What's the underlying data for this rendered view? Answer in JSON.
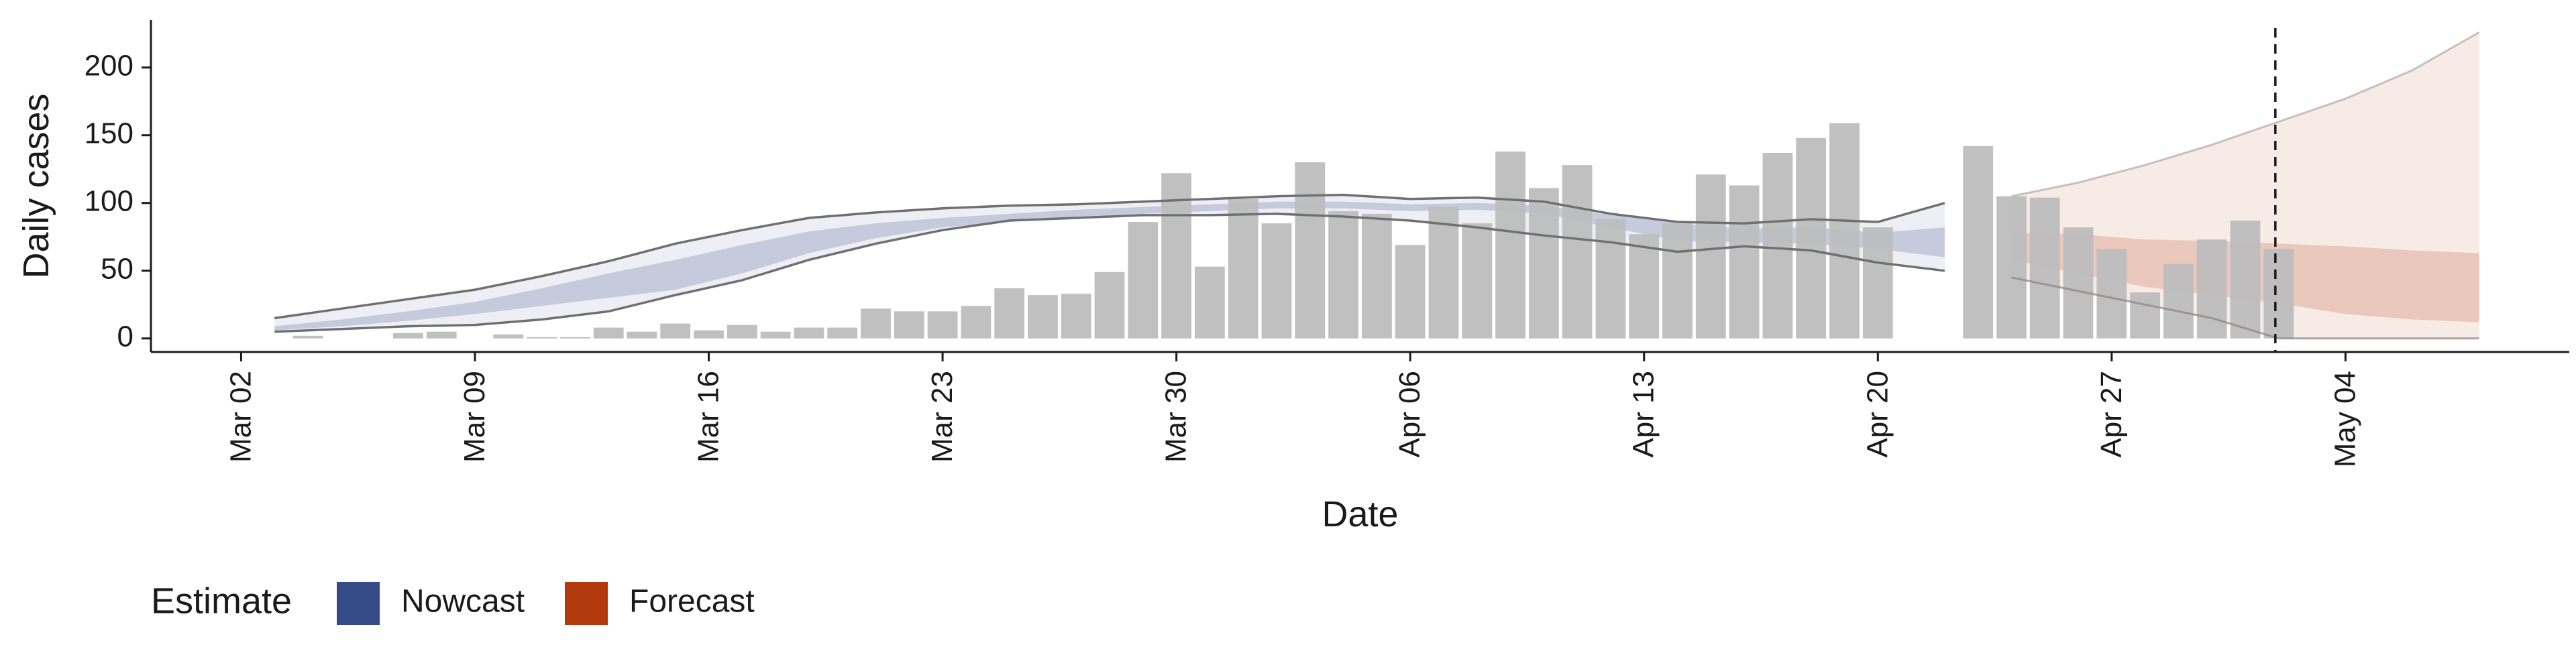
{
  "chart_data": {
    "type": "bar",
    "xlabel": "Date",
    "ylabel": "Daily cases",
    "ylim": [
      -10,
      235
    ],
    "yticks": [
      0,
      50,
      100,
      150,
      200
    ],
    "start_date": "2020-03-02",
    "x_ticks": [
      {
        "day": 0,
        "label": "Mar 02"
      },
      {
        "day": 7,
        "label": "Mar 09"
      },
      {
        "day": 14,
        "label": "Mar 16"
      },
      {
        "day": 21,
        "label": "Mar 23"
      },
      {
        "day": 28,
        "label": "Mar 30"
      },
      {
        "day": 35,
        "label": "Apr 06"
      },
      {
        "day": 42,
        "label": "Apr 13"
      },
      {
        "day": 49,
        "label": "Apr 20"
      },
      {
        "day": 56,
        "label": "Apr 27"
      },
      {
        "day": 63,
        "label": "May 04"
      }
    ],
    "xlim": [
      -2.7,
      69.7
    ],
    "vline_day": 60.9,
    "cases": [
      {
        "day": 2,
        "value": 2
      },
      {
        "day": 3,
        "value": 0
      },
      {
        "day": 4,
        "value": 0
      },
      {
        "day": 5,
        "value": 4
      },
      {
        "day": 6,
        "value": 5
      },
      {
        "day": 7,
        "value": 0
      },
      {
        "day": 8,
        "value": 3
      },
      {
        "day": 9,
        "value": 1
      },
      {
        "day": 10,
        "value": 1
      },
      {
        "day": 11,
        "value": 8
      },
      {
        "day": 12,
        "value": 5
      },
      {
        "day": 13,
        "value": 11
      },
      {
        "day": 14,
        "value": 6
      },
      {
        "day": 15,
        "value": 10
      },
      {
        "day": 16,
        "value": 5
      },
      {
        "day": 17,
        "value": 8
      },
      {
        "day": 18,
        "value": 8
      },
      {
        "day": 19,
        "value": 22
      },
      {
        "day": 20,
        "value": 20
      },
      {
        "day": 21,
        "value": 20
      },
      {
        "day": 22,
        "value": 24
      },
      {
        "day": 23,
        "value": 37
      },
      {
        "day": 24,
        "value": 32
      },
      {
        "day": 25,
        "value": 33
      },
      {
        "day": 26,
        "value": 49
      },
      {
        "day": 27,
        "value": 86
      },
      {
        "day": 28,
        "value": 122
      },
      {
        "day": 29,
        "value": 53
      },
      {
        "day": 30,
        "value": 103
      },
      {
        "day": 31,
        "value": 85
      },
      {
        "day": 32,
        "value": 130
      },
      {
        "day": 33,
        "value": 94
      },
      {
        "day": 34,
        "value": 92
      },
      {
        "day": 35,
        "value": 69
      },
      {
        "day": 36,
        "value": 97
      },
      {
        "day": 37,
        "value": 85
      },
      {
        "day": 38,
        "value": 138
      },
      {
        "day": 39,
        "value": 111
      },
      {
        "day": 40,
        "value": 128
      },
      {
        "day": 41,
        "value": 88
      },
      {
        "day": 42,
        "value": 77
      },
      {
        "day": 43,
        "value": 85
      },
      {
        "day": 44,
        "value": 121
      },
      {
        "day": 45,
        "value": 113
      },
      {
        "day": 46,
        "value": 137
      },
      {
        "day": 47,
        "value": 148
      },
      {
        "day": 48,
        "value": 159
      },
      {
        "day": 49,
        "value": 82
      },
      {
        "day": 50,
        "value": 0
      },
      {
        "day": 51,
        "value": 0
      },
      {
        "day": 52,
        "value": 142
      },
      {
        "day": 53,
        "value": 105
      },
      {
        "day": 54,
        "value": 104
      },
      {
        "day": 55,
        "value": 82
      },
      {
        "day": 56,
        "value": 66
      },
      {
        "day": 57,
        "value": 34
      },
      {
        "day": 58,
        "value": 55
      },
      {
        "day": 59,
        "value": 73
      },
      {
        "day": 60,
        "value": 87
      },
      {
        "day": 61,
        "value": 66
      }
    ],
    "nowcast": {
      "x": [
        1,
        3,
        5,
        7,
        9,
        11,
        13,
        15,
        17,
        19,
        21,
        23,
        25,
        27,
        29,
        31,
        33,
        35,
        37,
        39,
        41,
        43,
        45,
        47,
        49,
        51
      ],
      "upper90": [
        15,
        22,
        29,
        36,
        46,
        57,
        70,
        80,
        89,
        93,
        96,
        98,
        99,
        101,
        103,
        105,
        106,
        103,
        104,
        101,
        92,
        86,
        85,
        88,
        86,
        100
      ],
      "upper50": [
        9,
        14,
        20,
        27,
        37,
        48,
        58,
        69,
        79,
        85,
        89,
        92,
        95,
        97,
        99,
        101,
        101,
        99,
        100,
        98,
        91,
        85,
        81,
        82,
        78,
        82
      ],
      "lower50": [
        6,
        9,
        13,
        18,
        24,
        30,
        36,
        48,
        63,
        74,
        82,
        86,
        90,
        92,
        94,
        96,
        96,
        94,
        95,
        92,
        82,
        72,
        71,
        70,
        66,
        60
      ],
      "lower90": [
        5,
        7,
        9,
        10,
        14,
        20,
        32,
        43,
        58,
        70,
        80,
        87,
        89,
        91,
        91,
        92,
        90,
        87,
        82,
        76,
        71,
        64,
        68,
        65,
        56,
        50
      ]
    },
    "forecast": {
      "x": [
        53,
        55,
        57,
        59,
        61,
        63,
        65,
        67
      ],
      "upper90": [
        105,
        115,
        128,
        143,
        160,
        177,
        198,
        226
      ],
      "upper50": [
        78,
        77,
        73,
        72,
        70,
        68,
        65,
        63
      ],
      "lower50": [
        58,
        48,
        38,
        32,
        26,
        18,
        14,
        12
      ],
      "lower90": [
        45,
        35,
        25,
        15,
        0,
        0,
        0,
        0
      ]
    },
    "legend": {
      "title": "Estimate",
      "items": [
        {
          "label": "Nowcast",
          "color": "#354b87"
        },
        {
          "label": "Forecast",
          "color": "#b33a0d"
        }
      ],
      "position": "bottom-left"
    },
    "colors": {
      "bar": "#bdbdbd",
      "nowcast_band": "#354b87",
      "forecast_band": "#c8734e",
      "bound_line": "#707070",
      "vline": "#1a1a1a"
    }
  }
}
